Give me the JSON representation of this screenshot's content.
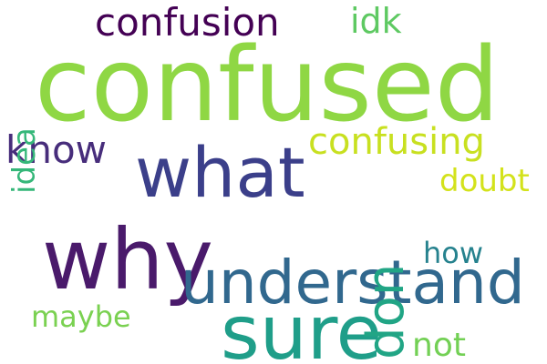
{
  "words": [
    {
      "key": "confused",
      "text": "confused",
      "color": "#8fd744"
    },
    {
      "key": "confusion",
      "text": "confusion",
      "color": "#440154"
    },
    {
      "key": "idk",
      "text": "idk",
      "color": "#5ec962"
    },
    {
      "key": "what",
      "text": "what",
      "color": "#3b3f8a"
    },
    {
      "key": "confusing",
      "text": "confusing",
      "color": "#c8e020"
    },
    {
      "key": "know",
      "text": "know",
      "color": "#472d7b"
    },
    {
      "key": "doubt",
      "text": "doubt",
      "color": "#d3e21b"
    },
    {
      "key": "why",
      "text": "why",
      "color": "#4a1a6b"
    },
    {
      "key": "understand",
      "text": "understand",
      "color": "#31688e"
    },
    {
      "key": "how",
      "text": "how",
      "color": "#26828e"
    },
    {
      "key": "maybe",
      "text": "maybe",
      "color": "#7ad151"
    },
    {
      "key": "sure",
      "text": "sure",
      "color": "#1f9e89"
    },
    {
      "key": "not",
      "text": "not",
      "color": "#73d055"
    },
    {
      "key": "idea",
      "text": "idea",
      "color": "#35b779"
    },
    {
      "key": "don",
      "text": "don",
      "color": "#21a585"
    }
  ]
}
